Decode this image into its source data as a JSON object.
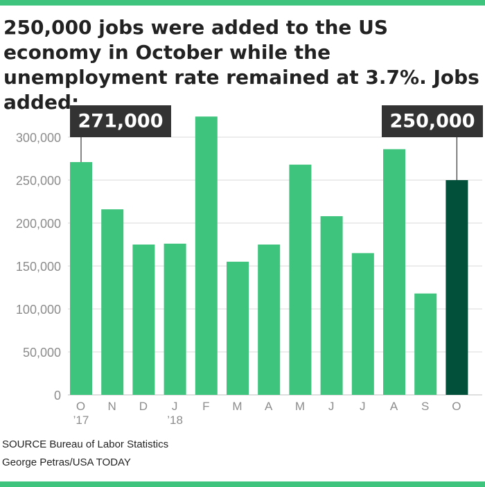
{
  "title": "250,000 jobs were added to the US economy in October while the unemployment rate remained at 3.7%. Jobs added:",
  "chart_data": {
    "type": "bar",
    "categories": [
      "O",
      "N",
      "D",
      "J",
      "F",
      "M",
      "A",
      "M",
      "J",
      "J",
      "A",
      "S",
      "O"
    ],
    "year_labels": [
      "’17",
      "",
      "",
      "’18",
      "",
      "",
      "",
      "",
      "",
      "",
      "",
      "",
      ""
    ],
    "values": [
      271000,
      216000,
      175000,
      176000,
      324000,
      155000,
      175000,
      268000,
      208000,
      165000,
      286000,
      118000,
      250000
    ],
    "ylim": [
      0,
      300000
    ],
    "yticks": [
      0,
      50000,
      100000,
      150000,
      200000,
      250000,
      300000
    ],
    "ytick_labels": [
      "0",
      "50,000",
      "100,000",
      "150,000",
      "200,000",
      "250,000",
      "300,000"
    ],
    "callouts": [
      {
        "index": 0,
        "label": "271,000"
      },
      {
        "index": 12,
        "label": "250,000"
      }
    ],
    "colors": {
      "bar": "#3ec47c",
      "highlight": "#03503a",
      "callout_bg": "#333333",
      "grid": "#d9d9d9",
      "tick_text": "#8c8c8c"
    },
    "highlight_index": 12,
    "grid": true
  },
  "source": {
    "line1": "SOURCE Bureau of Labor Statistics",
    "line2": "George Petras/USA TODAY"
  }
}
